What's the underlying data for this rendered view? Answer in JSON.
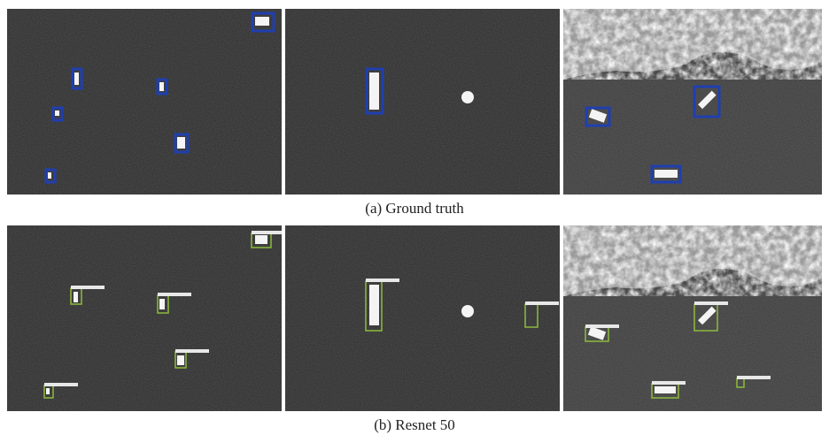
{
  "figure": {
    "captions": [
      "(a) Ground truth",
      "(b) Resnet 50"
    ]
  }
}
